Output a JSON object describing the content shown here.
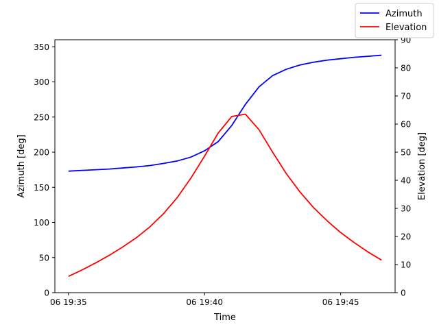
{
  "chart_data": {
    "type": "line",
    "xlabel": "Time",
    "ylabel_left": "Azimuth [deg]",
    "ylabel_right": "Elevation [deg]",
    "xlim": [
      -0.5,
      12.0
    ],
    "ylim_left": [
      0,
      360
    ],
    "ylim_right": [
      0,
      90
    ],
    "x_ticks": [
      {
        "value": 0,
        "label": "06 19:35"
      },
      {
        "value": 5,
        "label": "06 19:40"
      },
      {
        "value": 10,
        "label": "06 19:45"
      }
    ],
    "y_ticks_left": [
      0,
      50,
      100,
      150,
      200,
      250,
      300,
      350
    ],
    "y_ticks_right": [
      0,
      10,
      20,
      30,
      40,
      50,
      60,
      70,
      80,
      90
    ],
    "grid": false,
    "legend_position": "top-right",
    "series": [
      {
        "name": "Azimuth",
        "axis": "left",
        "color": "#0000ff",
        "x": [
          0,
          0.5,
          1,
          1.5,
          2,
          2.5,
          3,
          3.5,
          4,
          4.5,
          5,
          5.5,
          6,
          6.5,
          7,
          7.5,
          8,
          8.5,
          9,
          9.5,
          10,
          10.5,
          11,
          11.5
        ],
        "values": [
          173,
          174,
          175,
          176,
          177.5,
          179,
          181,
          184,
          187.5,
          193,
          202,
          215,
          238,
          268,
          293,
          309,
          318,
          324,
          328,
          331,
          333,
          335,
          336.5,
          338
        ]
      },
      {
        "name": "Elevation",
        "axis": "right",
        "color": "#ff0000",
        "x": [
          0,
          0.5,
          1,
          1.5,
          2,
          2.5,
          3,
          3.5,
          4,
          4.5,
          5,
          5.5,
          6,
          6.25,
          6.5,
          7,
          7.5,
          8,
          8.5,
          9,
          9.5,
          10,
          10.5,
          11,
          11.5
        ],
        "values": [
          5.8,
          8.1,
          10.6,
          13.3,
          16.3,
          19.6,
          23.5,
          28.2,
          33.9,
          40.8,
          48.6,
          56.8,
          62.7,
          63.1,
          63.5,
          58.0,
          50.0,
          42.4,
          35.9,
          30.3,
          25.6,
          21.4,
          17.8,
          14.5,
          11.6
        ]
      }
    ]
  }
}
